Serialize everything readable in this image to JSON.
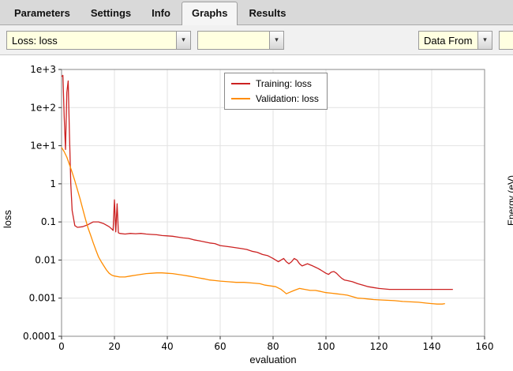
{
  "tabs": {
    "items": [
      {
        "label": "Parameters",
        "active": false
      },
      {
        "label": "Settings",
        "active": false
      },
      {
        "label": "Info",
        "active": false
      },
      {
        "label": "Graphs",
        "active": true
      },
      {
        "label": "Results",
        "active": false
      }
    ]
  },
  "toolbar": {
    "loss_combo_value": "Loss: loss",
    "secondary_combo_value": "",
    "data_from_label": "Data From",
    "combo_background": "#ffffe1"
  },
  "right_panel": {
    "ylabel": "Energy (eV)"
  },
  "chart_data": {
    "type": "line",
    "title": "",
    "xlabel": "evaluation",
    "ylabel": "loss",
    "x_scale": "linear",
    "y_scale": "log",
    "grid": true,
    "legend_position": "top-center",
    "xlim": [
      0,
      160
    ],
    "ylog": [
      -4,
      3
    ],
    "x_ticks": [
      0,
      20,
      40,
      60,
      80,
      100,
      120,
      140,
      160
    ],
    "y_ticks": [
      {
        "value": 1000,
        "label": "1e+3"
      },
      {
        "value": 100,
        "label": "1e+2"
      },
      {
        "value": 10,
        "label": "1e+1"
      },
      {
        "value": 1,
        "label": "1"
      },
      {
        "value": 0.1,
        "label": "0.1"
      },
      {
        "value": 0.01,
        "label": "0.01"
      },
      {
        "value": 0.001,
        "label": "0.001"
      },
      {
        "value": 0.0001,
        "label": "0.0001"
      }
    ],
    "series": [
      {
        "name": "Training: loss",
        "color": "#cc2222",
        "points": [
          [
            0,
            650
          ],
          [
            0.5,
            700
          ],
          [
            1,
            60
          ],
          [
            1.5,
            8
          ],
          [
            2,
            250
          ],
          [
            2.5,
            500
          ],
          [
            3,
            20
          ],
          [
            3.5,
            1
          ],
          [
            4,
            0.2
          ],
          [
            5,
            0.08
          ],
          [
            6,
            0.072
          ],
          [
            8,
            0.075
          ],
          [
            10,
            0.085
          ],
          [
            12,
            0.1
          ],
          [
            14,
            0.1
          ],
          [
            16,
            0.09
          ],
          [
            18,
            0.075
          ],
          [
            19,
            0.065
          ],
          [
            19.5,
            0.06
          ],
          [
            20,
            0.38
          ],
          [
            20.5,
            0.055
          ],
          [
            21,
            0.3
          ],
          [
            21.5,
            0.052
          ],
          [
            22,
            0.05
          ],
          [
            24,
            0.048
          ],
          [
            26,
            0.05
          ],
          [
            28,
            0.049
          ],
          [
            30,
            0.05
          ],
          [
            32,
            0.048
          ],
          [
            34,
            0.047
          ],
          [
            36,
            0.046
          ],
          [
            38,
            0.044
          ],
          [
            40,
            0.043
          ],
          [
            42,
            0.042
          ],
          [
            44,
            0.04
          ],
          [
            46,
            0.038
          ],
          [
            48,
            0.037
          ],
          [
            50,
            0.034
          ],
          [
            52,
            0.032
          ],
          [
            54,
            0.03
          ],
          [
            56,
            0.028
          ],
          [
            58,
            0.027
          ],
          [
            60,
            0.024
          ],
          [
            62,
            0.023
          ],
          [
            64,
            0.022
          ],
          [
            66,
            0.021
          ],
          [
            68,
            0.02
          ],
          [
            70,
            0.019
          ],
          [
            72,
            0.017
          ],
          [
            74,
            0.016
          ],
          [
            76,
            0.014
          ],
          [
            78,
            0.013
          ],
          [
            80,
            0.011
          ],
          [
            82,
            0.009
          ],
          [
            83,
            0.01
          ],
          [
            84,
            0.011
          ],
          [
            85,
            0.009
          ],
          [
            86,
            0.008
          ],
          [
            87,
            0.009
          ],
          [
            88,
            0.011
          ],
          [
            89,
            0.01
          ],
          [
            90,
            0.008
          ],
          [
            91,
            0.007
          ],
          [
            92,
            0.0075
          ],
          [
            93,
            0.008
          ],
          [
            94,
            0.0075
          ],
          [
            95,
            0.007
          ],
          [
            96,
            0.0065
          ],
          [
            97,
            0.006
          ],
          [
            98,
            0.0055
          ],
          [
            100,
            0.0045
          ],
          [
            101,
            0.0042
          ],
          [
            102,
            0.0048
          ],
          [
            103,
            0.005
          ],
          [
            104,
            0.0045
          ],
          [
            105,
            0.0038
          ],
          [
            106,
            0.0033
          ],
          [
            107,
            0.003
          ],
          [
            108,
            0.0029
          ],
          [
            110,
            0.0027
          ],
          [
            112,
            0.0024
          ],
          [
            114,
            0.0022
          ],
          [
            116,
            0.002
          ],
          [
            118,
            0.0019
          ],
          [
            120,
            0.0018
          ],
          [
            122,
            0.00175
          ],
          [
            124,
            0.0017
          ],
          [
            128,
            0.0017
          ],
          [
            132,
            0.0017
          ],
          [
            136,
            0.0017
          ],
          [
            140,
            0.0017
          ],
          [
            144,
            0.0017
          ],
          [
            148,
            0.0017
          ]
        ]
      },
      {
        "name": "Validation: loss",
        "color": "#ff8c00",
        "points": [
          [
            0,
            9
          ],
          [
            1,
            7
          ],
          [
            2,
            5
          ],
          [
            3,
            3.2
          ],
          [
            4,
            2
          ],
          [
            5,
            1.2
          ],
          [
            6,
            0.7
          ],
          [
            7,
            0.4
          ],
          [
            8,
            0.22
          ],
          [
            9,
            0.12
          ],
          [
            10,
            0.07
          ],
          [
            11,
            0.045
          ],
          [
            12,
            0.028
          ],
          [
            13,
            0.018
          ],
          [
            14,
            0.012
          ],
          [
            15,
            0.009
          ],
          [
            16,
            0.007
          ],
          [
            17,
            0.0055
          ],
          [
            18,
            0.0045
          ],
          [
            19,
            0.004
          ],
          [
            20,
            0.0038
          ],
          [
            22,
            0.0036
          ],
          [
            24,
            0.0036
          ],
          [
            26,
            0.0038
          ],
          [
            28,
            0.004
          ],
          [
            30,
            0.0042
          ],
          [
            32,
            0.0044
          ],
          [
            34,
            0.0045
          ],
          [
            36,
            0.0046
          ],
          [
            38,
            0.0046
          ],
          [
            40,
            0.0045
          ],
          [
            42,
            0.0044
          ],
          [
            44,
            0.0042
          ],
          [
            46,
            0.004
          ],
          [
            48,
            0.0038
          ],
          [
            50,
            0.0036
          ],
          [
            52,
            0.0034
          ],
          [
            54,
            0.0032
          ],
          [
            56,
            0.003
          ],
          [
            58,
            0.0029
          ],
          [
            60,
            0.0028
          ],
          [
            63,
            0.0027
          ],
          [
            66,
            0.0026
          ],
          [
            69,
            0.0026
          ],
          [
            72,
            0.0025
          ],
          [
            75,
            0.0024
          ],
          [
            77,
            0.0022
          ],
          [
            79,
            0.0021
          ],
          [
            81,
            0.002
          ],
          [
            83,
            0.0017
          ],
          [
            84,
            0.0015
          ],
          [
            85,
            0.0013
          ],
          [
            86,
            0.0014
          ],
          [
            88,
            0.0016
          ],
          [
            90,
            0.0018
          ],
          [
            92,
            0.0017
          ],
          [
            94,
            0.0016
          ],
          [
            96,
            0.0016
          ],
          [
            98,
            0.0015
          ],
          [
            100,
            0.0014
          ],
          [
            102,
            0.00135
          ],
          [
            104,
            0.0013
          ],
          [
            106,
            0.00125
          ],
          [
            108,
            0.0012
          ],
          [
            110,
            0.0011
          ],
          [
            112,
            0.001
          ],
          [
            114,
            0.00098
          ],
          [
            116,
            0.00095
          ],
          [
            118,
            0.00092
          ],
          [
            120,
            0.0009
          ],
          [
            123,
            0.00088
          ],
          [
            126,
            0.00086
          ],
          [
            129,
            0.00082
          ],
          [
            132,
            0.0008
          ],
          [
            135,
            0.00078
          ],
          [
            138,
            0.00074
          ],
          [
            140,
            0.00072
          ],
          [
            142,
            0.0007
          ],
          [
            144,
            0.0007
          ],
          [
            145,
            0.00072
          ]
        ]
      }
    ]
  }
}
